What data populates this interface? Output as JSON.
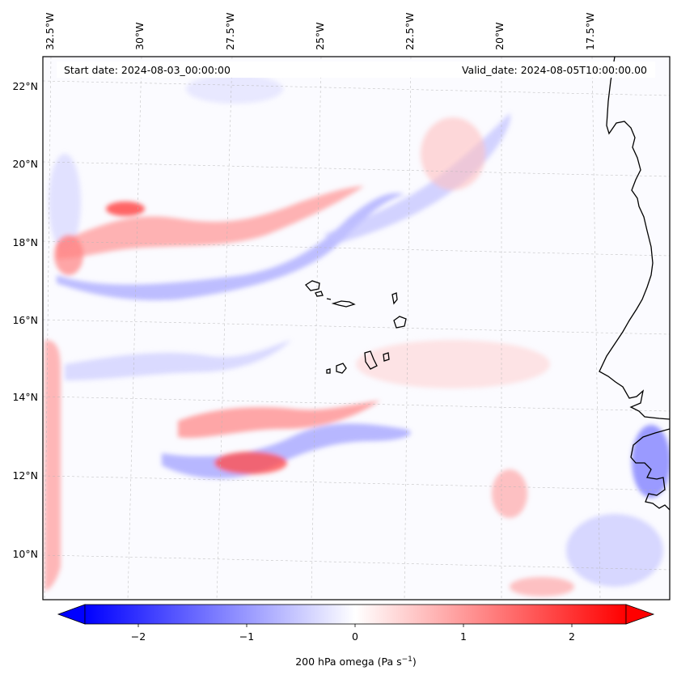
{
  "map": {
    "start_label": "Start date: 2024-08-03_00:00:00",
    "valid_label": "Valid_date: 2024-08-05T10:00:00.00",
    "lon_labels": [
      "32.5°W",
      "30°W",
      "27.5°W",
      "25°W",
      "22.5°W",
      "20°W",
      "17.5°W"
    ],
    "lat_labels": [
      "22°N",
      "20°N",
      "18°N",
      "16°N",
      "14°N",
      "12°N",
      "10°N"
    ],
    "colorbar": {
      "label_prefix": "200 hPa omega (Pa s",
      "label_exponent": "−1",
      "label_suffix": ")",
      "ticks": [
        "−2",
        "−1",
        "0",
        "1",
        "2"
      ],
      "range": [
        -2.75,
        2.75
      ],
      "negative_color": "#0000ff",
      "positive_color": "#ff0000",
      "neutral_color": "#ffffff"
    }
  }
}
